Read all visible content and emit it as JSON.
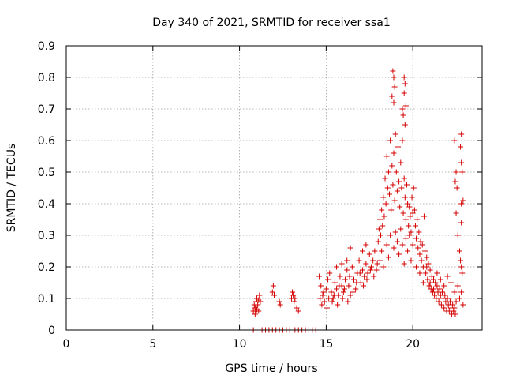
{
  "chart_data": {
    "type": "scatter",
    "title": "Day 340 of 2021, SRMTID for receiver ssa1",
    "xlabel": "GPS time / hours",
    "ylabel": "SRMTID / TECUs",
    "xlim": [
      0,
      24
    ],
    "ylim": [
      0,
      0.9
    ],
    "xticks": [
      0,
      5,
      10,
      15,
      20
    ],
    "yticks": [
      0,
      0.1,
      0.2,
      0.3,
      0.4,
      0.5,
      0.6,
      0.7,
      0.8,
      0.9
    ],
    "grid": true,
    "marker": "+",
    "color": "#d40000",
    "series": [
      {
        "name": "ssa1",
        "points": [
          [
            10.8,
            0.0
          ],
          [
            11.3,
            0.0
          ],
          [
            11.5,
            0.0
          ],
          [
            11.7,
            0.0
          ],
          [
            11.9,
            0.0
          ],
          [
            12.1,
            0.0
          ],
          [
            12.3,
            0.0
          ],
          [
            12.5,
            0.0
          ],
          [
            12.7,
            0.0
          ],
          [
            12.9,
            0.0
          ],
          [
            13.2,
            0.0
          ],
          [
            13.4,
            0.0
          ],
          [
            13.6,
            0.0
          ],
          [
            13.8,
            0.0
          ],
          [
            14.0,
            0.0
          ],
          [
            14.2,
            0.0
          ],
          [
            14.4,
            0.0
          ],
          [
            10.8,
            0.06
          ],
          [
            10.85,
            0.08
          ],
          [
            10.9,
            0.07
          ],
          [
            10.95,
            0.09
          ],
          [
            11.0,
            0.1
          ],
          [
            11.05,
            0.08
          ],
          [
            11.1,
            0.06
          ],
          [
            11.15,
            0.11
          ],
          [
            11.2,
            0.09
          ],
          [
            10.9,
            0.05
          ],
          [
            11.0,
            0.065
          ],
          [
            11.1,
            0.095
          ],
          [
            11.9,
            0.12
          ],
          [
            11.95,
            0.14
          ],
          [
            12.0,
            0.11
          ],
          [
            12.3,
            0.09
          ],
          [
            12.35,
            0.08
          ],
          [
            13.0,
            0.1
          ],
          [
            13.05,
            0.12
          ],
          [
            13.1,
            0.11
          ],
          [
            13.15,
            0.09
          ],
          [
            13.2,
            0.1
          ],
          [
            13.3,
            0.07
          ],
          [
            13.4,
            0.06
          ],
          [
            14.6,
            0.17
          ],
          [
            14.7,
            0.14
          ],
          [
            14.8,
            0.11
          ],
          [
            14.9,
            0.09
          ],
          [
            15.0,
            0.13
          ],
          [
            15.1,
            0.16
          ],
          [
            15.2,
            0.18
          ],
          [
            15.3,
            0.12
          ],
          [
            15.4,
            0.1
          ],
          [
            15.5,
            0.15
          ],
          [
            15.6,
            0.13
          ],
          [
            15.7,
            0.11
          ],
          [
            15.8,
            0.17
          ],
          [
            15.9,
            0.14
          ],
          [
            16.0,
            0.12
          ],
          [
            16.1,
            0.16
          ],
          [
            16.2,
            0.19
          ],
          [
            16.3,
            0.14
          ],
          [
            16.4,
            0.11
          ],
          [
            16.5,
            0.2
          ],
          [
            16.6,
            0.16
          ],
          [
            16.7,
            0.13
          ],
          [
            16.8,
            0.18
          ],
          [
            16.9,
            0.22
          ],
          [
            17.0,
            0.15
          ],
          [
            17.1,
            0.19
          ],
          [
            17.2,
            0.17
          ],
          [
            17.3,
            0.21
          ],
          [
            17.4,
            0.18
          ],
          [
            17.5,
            0.24
          ],
          [
            17.6,
            0.2
          ],
          [
            17.7,
            0.22
          ],
          [
            17.8,
            0.25
          ],
          [
            17.9,
            0.19
          ],
          [
            14.65,
            0.1
          ],
          [
            14.75,
            0.08
          ],
          [
            14.85,
            0.12
          ],
          [
            15.05,
            0.07
          ],
          [
            15.15,
            0.1
          ],
          [
            15.35,
            0.09
          ],
          [
            15.45,
            0.11
          ],
          [
            15.65,
            0.08
          ],
          [
            15.75,
            0.14
          ],
          [
            15.95,
            0.1
          ],
          [
            16.05,
            0.13
          ],
          [
            16.25,
            0.09
          ],
          [
            16.35,
            0.17
          ],
          [
            16.55,
            0.12
          ],
          [
            16.75,
            0.15
          ],
          [
            16.95,
            0.18
          ],
          [
            17.15,
            0.14
          ],
          [
            17.35,
            0.16
          ],
          [
            17.55,
            0.19
          ],
          [
            17.75,
            0.17
          ],
          [
            17.95,
            0.21
          ],
          [
            16.4,
            0.26
          ],
          [
            17.1,
            0.25
          ],
          [
            16.2,
            0.22
          ],
          [
            15.6,
            0.2
          ],
          [
            15.9,
            0.21
          ],
          [
            17.3,
            0.27
          ],
          [
            18.0,
            0.28
          ],
          [
            18.05,
            0.32
          ],
          [
            18.1,
            0.35
          ],
          [
            18.15,
            0.3
          ],
          [
            18.2,
            0.38
          ],
          [
            18.25,
            0.33
          ],
          [
            18.3,
            0.42
          ],
          [
            18.35,
            0.36
          ],
          [
            18.4,
            0.48
          ],
          [
            18.45,
            0.4
          ],
          [
            18.5,
            0.55
          ],
          [
            18.55,
            0.45
          ],
          [
            18.6,
            0.5
          ],
          [
            18.65,
            0.43
          ],
          [
            18.7,
            0.6
          ],
          [
            18.75,
            0.38
          ],
          [
            18.8,
            0.52
          ],
          [
            18.85,
            0.46
          ],
          [
            18.9,
            0.56
          ],
          [
            18.95,
            0.41
          ],
          [
            19.0,
            0.62
          ],
          [
            19.05,
            0.5
          ],
          [
            19.1,
            0.44
          ],
          [
            19.15,
            0.58
          ],
          [
            19.2,
            0.47
          ],
          [
            19.25,
            0.39
          ],
          [
            19.3,
            0.53
          ],
          [
            19.35,
            0.45
          ],
          [
            19.4,
            0.6
          ],
          [
            19.45,
            0.37
          ],
          [
            19.5,
            0.48
          ],
          [
            19.55,
            0.42
          ],
          [
            19.6,
            0.35
          ],
          [
            19.65,
            0.46
          ],
          [
            19.7,
            0.4
          ],
          [
            19.75,
            0.33
          ],
          [
            19.8,
            0.39
          ],
          [
            19.85,
            0.36
          ],
          [
            19.9,
            0.31
          ],
          [
            19.95,
            0.42
          ],
          [
            20.0,
            0.37
          ],
          [
            18.1,
            0.22
          ],
          [
            18.2,
            0.25
          ],
          [
            18.3,
            0.2
          ],
          [
            18.5,
            0.27
          ],
          [
            18.6,
            0.23
          ],
          [
            18.7,
            0.3
          ],
          [
            18.9,
            0.26
          ],
          [
            19.0,
            0.31
          ],
          [
            19.1,
            0.28
          ],
          [
            19.2,
            0.24
          ],
          [
            19.3,
            0.32
          ],
          [
            19.4,
            0.27
          ],
          [
            19.5,
            0.21
          ],
          [
            19.6,
            0.29
          ],
          [
            19.7,
            0.25
          ],
          [
            19.8,
            0.3
          ],
          [
            19.9,
            0.22
          ],
          [
            20.0,
            0.27
          ],
          [
            18.85,
            0.82
          ],
          [
            18.9,
            0.8
          ],
          [
            18.95,
            0.77
          ],
          [
            18.8,
            0.74
          ],
          [
            18.9,
            0.72
          ],
          [
            19.5,
            0.8
          ],
          [
            19.55,
            0.78
          ],
          [
            19.5,
            0.75
          ],
          [
            19.6,
            0.71
          ],
          [
            19.45,
            0.68
          ],
          [
            19.55,
            0.65
          ],
          [
            19.4,
            0.7
          ],
          [
            20.05,
            0.45
          ],
          [
            20.1,
            0.38
          ],
          [
            20.15,
            0.33
          ],
          [
            20.2,
            0.29
          ],
          [
            20.25,
            0.35
          ],
          [
            20.3,
            0.26
          ],
          [
            20.35,
            0.31
          ],
          [
            20.4,
            0.24
          ],
          [
            20.45,
            0.28
          ],
          [
            20.5,
            0.22
          ],
          [
            20.55,
            0.27
          ],
          [
            20.6,
            0.2
          ],
          [
            20.65,
            0.36
          ],
          [
            20.7,
            0.25
          ],
          [
            20.75,
            0.18
          ],
          [
            20.8,
            0.23
          ],
          [
            20.85,
            0.16
          ],
          [
            20.9,
            0.21
          ],
          [
            20.95,
            0.14
          ],
          [
            21.0,
            0.19
          ],
          [
            21.05,
            0.13
          ],
          [
            21.1,
            0.17
          ],
          [
            21.15,
            0.12
          ],
          [
            21.2,
            0.16
          ],
          [
            21.25,
            0.11
          ],
          [
            21.3,
            0.15
          ],
          [
            21.35,
            0.1
          ],
          [
            21.4,
            0.14
          ],
          [
            21.45,
            0.12
          ],
          [
            21.5,
            0.09
          ],
          [
            21.55,
            0.13
          ],
          [
            21.6,
            0.11
          ],
          [
            21.65,
            0.08
          ],
          [
            21.7,
            0.12
          ],
          [
            21.75,
            0.1
          ],
          [
            21.8,
            0.07
          ],
          [
            21.85,
            0.11
          ],
          [
            21.9,
            0.09
          ],
          [
            21.95,
            0.06
          ],
          [
            22.0,
            0.1
          ],
          [
            22.05,
            0.08
          ],
          [
            22.1,
            0.06
          ],
          [
            22.15,
            0.09
          ],
          [
            22.2,
            0.07
          ],
          [
            22.25,
            0.05
          ],
          [
            22.3,
            0.08
          ],
          [
            22.35,
            0.06
          ],
          [
            22.4,
            0.07
          ],
          [
            22.45,
            0.05
          ],
          [
            22.5,
            0.09
          ],
          [
            20.2,
            0.2
          ],
          [
            20.4,
            0.18
          ],
          [
            20.6,
            0.15
          ],
          [
            20.8,
            0.2
          ],
          [
            21.0,
            0.15
          ],
          [
            21.2,
            0.13
          ],
          [
            21.4,
            0.18
          ],
          [
            21.6,
            0.16
          ],
          [
            21.8,
            0.14
          ],
          [
            22.0,
            0.17
          ],
          [
            22.2,
            0.15
          ],
          [
            22.4,
            0.12
          ],
          [
            22.6,
            0.14
          ],
          [
            22.7,
            0.1
          ],
          [
            22.8,
            0.12
          ],
          [
            22.9,
            0.08
          ],
          [
            22.4,
            0.6
          ],
          [
            22.5,
            0.5
          ],
          [
            22.45,
            0.47
          ],
          [
            22.55,
            0.45
          ],
          [
            22.8,
            0.62
          ],
          [
            22.75,
            0.58
          ],
          [
            22.8,
            0.53
          ],
          [
            22.85,
            0.5
          ],
          [
            22.8,
            0.4
          ],
          [
            22.9,
            0.41
          ],
          [
            22.5,
            0.37
          ],
          [
            22.8,
            0.34
          ],
          [
            22.6,
            0.3
          ],
          [
            22.7,
            0.25
          ],
          [
            22.75,
            0.22
          ],
          [
            22.8,
            0.2
          ],
          [
            22.85,
            0.18
          ]
        ]
      }
    ]
  }
}
